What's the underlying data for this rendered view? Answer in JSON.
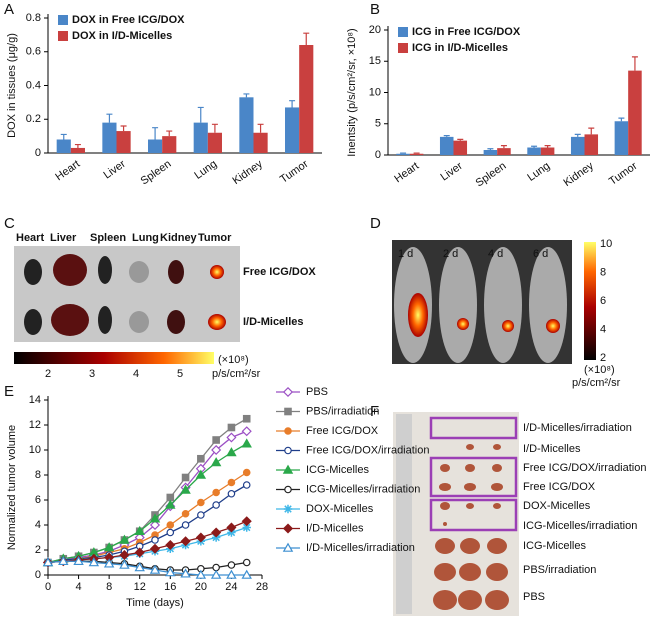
{
  "chart_data": [
    {
      "type": "bar",
      "panel_label": "A",
      "ylabel": "DOX in tissues (μg/g)",
      "categories": [
        "Heart",
        "Liver",
        "Spleen",
        "Lung",
        "Kidney",
        "Tumor"
      ],
      "series": [
        {
          "name": "DOX in Free ICG/DOX",
          "color": "#4a86c8",
          "values": [
            0.08,
            0.18,
            0.08,
            0.18,
            0.33,
            0.27
          ],
          "errors": [
            0.03,
            0.05,
            0.07,
            0.09,
            0.02,
            0.04
          ]
        },
        {
          "name": "DOX in I/D-Micelles",
          "color": "#c9403f",
          "values": [
            0.03,
            0.13,
            0.1,
            0.12,
            0.12,
            0.64
          ],
          "errors": [
            0.02,
            0.03,
            0.03,
            0.05,
            0.05,
            0.07
          ]
        }
      ],
      "ylim": [
        0,
        0.8
      ],
      "yticks": [
        0,
        0.2,
        0.4,
        0.6,
        0.8
      ],
      "legend": "upper left"
    },
    {
      "type": "bar",
      "panel_label": "B",
      "ylabel": "Inentsity (p/s/cm²/sr, ×10⁸)",
      "categories": [
        "Heart",
        "Liver",
        "Spleen",
        "Lung",
        "Kidney",
        "Tumor"
      ],
      "series": [
        {
          "name": "ICG in Free ICG/DOX",
          "color": "#4a86c8",
          "values": [
            0.2,
            2.9,
            0.8,
            1.2,
            2.9,
            5.4
          ],
          "errors": [
            0.1,
            0.2,
            0.2,
            0.2,
            0.4,
            0.5
          ]
        },
        {
          "name": "ICG in I/D-Micelles",
          "color": "#c9403f",
          "values": [
            0.2,
            2.3,
            1.1,
            1.2,
            3.3,
            13.5
          ],
          "errors": [
            0.1,
            0.2,
            0.4,
            0.3,
            1.0,
            2.2
          ]
        }
      ],
      "ylim": [
        0,
        20
      ],
      "yticks": [
        0,
        5,
        10,
        15,
        20
      ],
      "legend": "upper left"
    },
    {
      "type": "line",
      "panel_label": "E",
      "xlabel": "Time (days)",
      "ylabel": "Normalized tumor volume",
      "x": [
        0,
        2,
        4,
        6,
        8,
        10,
        12,
        14,
        16,
        18,
        20,
        22,
        24,
        26
      ],
      "series": [
        {
          "name": "PBS",
          "color": "#9b4fc4",
          "marker": "diamond",
          "open": true,
          "values": [
            1,
            1.2,
            1.4,
            1.6,
            1.9,
            2.4,
            3,
            4,
            5.5,
            7,
            8.5,
            10,
            11,
            11.5
          ]
        },
        {
          "name": "PBS/irradiation",
          "color": "#808080",
          "marker": "square",
          "open": false,
          "values": [
            1,
            1.3,
            1.5,
            1.8,
            2.2,
            2.8,
            3.5,
            4.8,
            6.2,
            7.8,
            9.3,
            10.8,
            11.8,
            12.5
          ]
        },
        {
          "name": "Free ICG/DOX",
          "color": "#e87d2a",
          "marker": "circle",
          "open": false,
          "values": [
            1,
            1.2,
            1.3,
            1.5,
            1.8,
            2.1,
            2.6,
            3.2,
            4,
            4.9,
            5.8,
            6.6,
            7.4,
            8.2
          ]
        },
        {
          "name": "Free ICG/DOX/irradiation",
          "color": "#1f3e8a",
          "marker": "circle",
          "open": true,
          "values": [
            1,
            1.2,
            1.3,
            1.4,
            1.6,
            1.9,
            2.3,
            2.8,
            3.4,
            4,
            4.8,
            5.6,
            6.5,
            7.2
          ]
        },
        {
          "name": "ICG-Micelles",
          "color": "#2aa84a",
          "marker": "triangle",
          "open": false,
          "values": [
            1,
            1.3,
            1.5,
            1.8,
            2.2,
            2.8,
            3.5,
            4.5,
            5.6,
            6.8,
            8,
            9,
            9.8,
            10.5
          ]
        },
        {
          "name": "ICG-Micelles/irradiation",
          "color": "#222222",
          "marker": "circle",
          "open": true,
          "values": [
            1,
            1.1,
            1.1,
            1.1,
            1.0,
            0.9,
            0.7,
            0.5,
            0.4,
            0.4,
            0.5,
            0.6,
            0.8,
            1.0
          ]
        },
        {
          "name": "DOX-Micelles",
          "color": "#3fb7e8",
          "marker": "star",
          "open": false,
          "values": [
            1,
            1.1,
            1.2,
            1.3,
            1.4,
            1.5,
            1.7,
            1.9,
            2.1,
            2.4,
            2.7,
            3,
            3.4,
            3.8
          ]
        },
        {
          "name": "I/D-Micelles",
          "color": "#8b1a1a",
          "marker": "diamond",
          "open": false,
          "values": [
            1,
            1.1,
            1.2,
            1.3,
            1.4,
            1.6,
            1.8,
            2.1,
            2.4,
            2.7,
            3,
            3.4,
            3.8,
            4.3
          ]
        },
        {
          "name": "I/D-Micelles/irradiation",
          "color": "#3d8fd1",
          "marker": "triangle",
          "open": true,
          "values": [
            1,
            1.1,
            1.1,
            1.0,
            0.9,
            0.8,
            0.6,
            0.4,
            0.2,
            0.1,
            0,
            0,
            0,
            0
          ]
        }
      ],
      "xlim": [
        0,
        28
      ],
      "xticks": [
        0,
        4,
        8,
        12,
        16,
        20,
        24,
        28
      ],
      "ylim": [
        0,
        14
      ],
      "yticks": [
        0,
        2,
        4,
        6,
        8,
        10,
        12,
        14
      ],
      "legend": "right"
    }
  ],
  "panels": {
    "C": {
      "panel_label": "C",
      "columns": [
        "Heart",
        "Liver",
        "Spleen",
        "Lung",
        "Kidney",
        "Tumor"
      ],
      "rows": [
        "Free ICG/DOX",
        "I/D-Micelles"
      ],
      "colorbar_ticks": [
        "2",
        "3",
        "4",
        "5"
      ],
      "colorbar_scale": "(×10⁸)",
      "colorbar_unit": "p/s/cm²/sr"
    },
    "D": {
      "panel_label": "D",
      "days": [
        "1 d",
        "2 d",
        "4 d",
        "6 d"
      ],
      "colorbar_ticks": [
        "10",
        "8",
        "6",
        "4",
        "2"
      ],
      "colorbar_scale": "(×10⁸)",
      "colorbar_unit": "p/s/cm²/sr"
    },
    "F": {
      "panel_label": "F",
      "groups": [
        "I/D-Micelles/irradiation",
        "I/D-Micelles",
        "Free ICG/DOX/irradiation",
        "Free ICG/DOX",
        "DOX-Micelles",
        "ICG-Micelles/irradiation",
        "ICG-Micelles",
        "PBS/irradiation",
        "PBS"
      ]
    }
  }
}
